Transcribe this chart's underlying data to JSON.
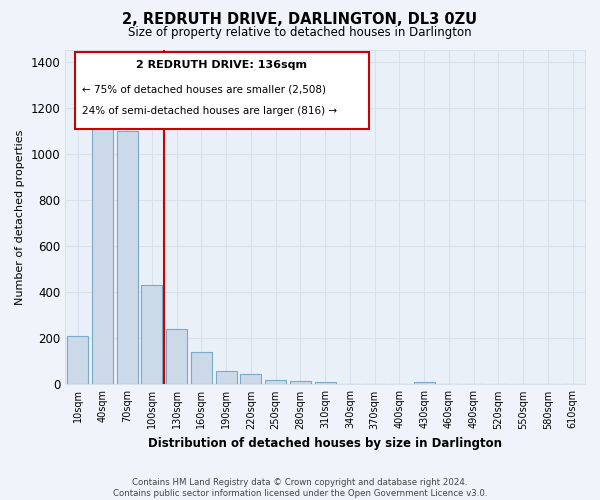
{
  "title": "2, REDRUTH DRIVE, DARLINGTON, DL3 0ZU",
  "subtitle": "Size of property relative to detached houses in Darlington",
  "xlabel": "Distribution of detached houses by size in Darlington",
  "ylabel": "Number of detached properties",
  "bar_fill_color": "#ccd9e8",
  "bar_edge_color": "#7aaac8",
  "marker_line_color": "#cc0000",
  "categories": [
    "10sqm",
    "40sqm",
    "70sqm",
    "100sqm",
    "130sqm",
    "160sqm",
    "190sqm",
    "220sqm",
    "250sqm",
    "280sqm",
    "310sqm",
    "340sqm",
    "370sqm",
    "400sqm",
    "430sqm",
    "460sqm",
    "490sqm",
    "520sqm",
    "550sqm",
    "580sqm",
    "610sqm"
  ],
  "values": [
    210,
    1120,
    1100,
    430,
    240,
    140,
    60,
    45,
    20,
    15,
    10,
    0,
    0,
    0,
    10,
    0,
    0,
    0,
    0,
    0,
    0
  ],
  "annotation_title": "2 REDRUTH DRIVE: 136sqm",
  "annotation_line1": "← 75% of detached houses are smaller (2,508)",
  "annotation_line2": "24% of semi-detached houses are larger (816) →",
  "ylim": [
    0,
    1450
  ],
  "yticks": [
    0,
    200,
    400,
    600,
    800,
    1000,
    1200,
    1400
  ],
  "footer_line1": "Contains HM Land Registry data © Crown copyright and database right 2024.",
  "footer_line2": "Contains public sector information licensed under the Open Government Licence v3.0.",
  "bg_color": "#f0f4fa",
  "grid_color": "#d8e0ec",
  "plot_bg_color": "#eaf0f8"
}
